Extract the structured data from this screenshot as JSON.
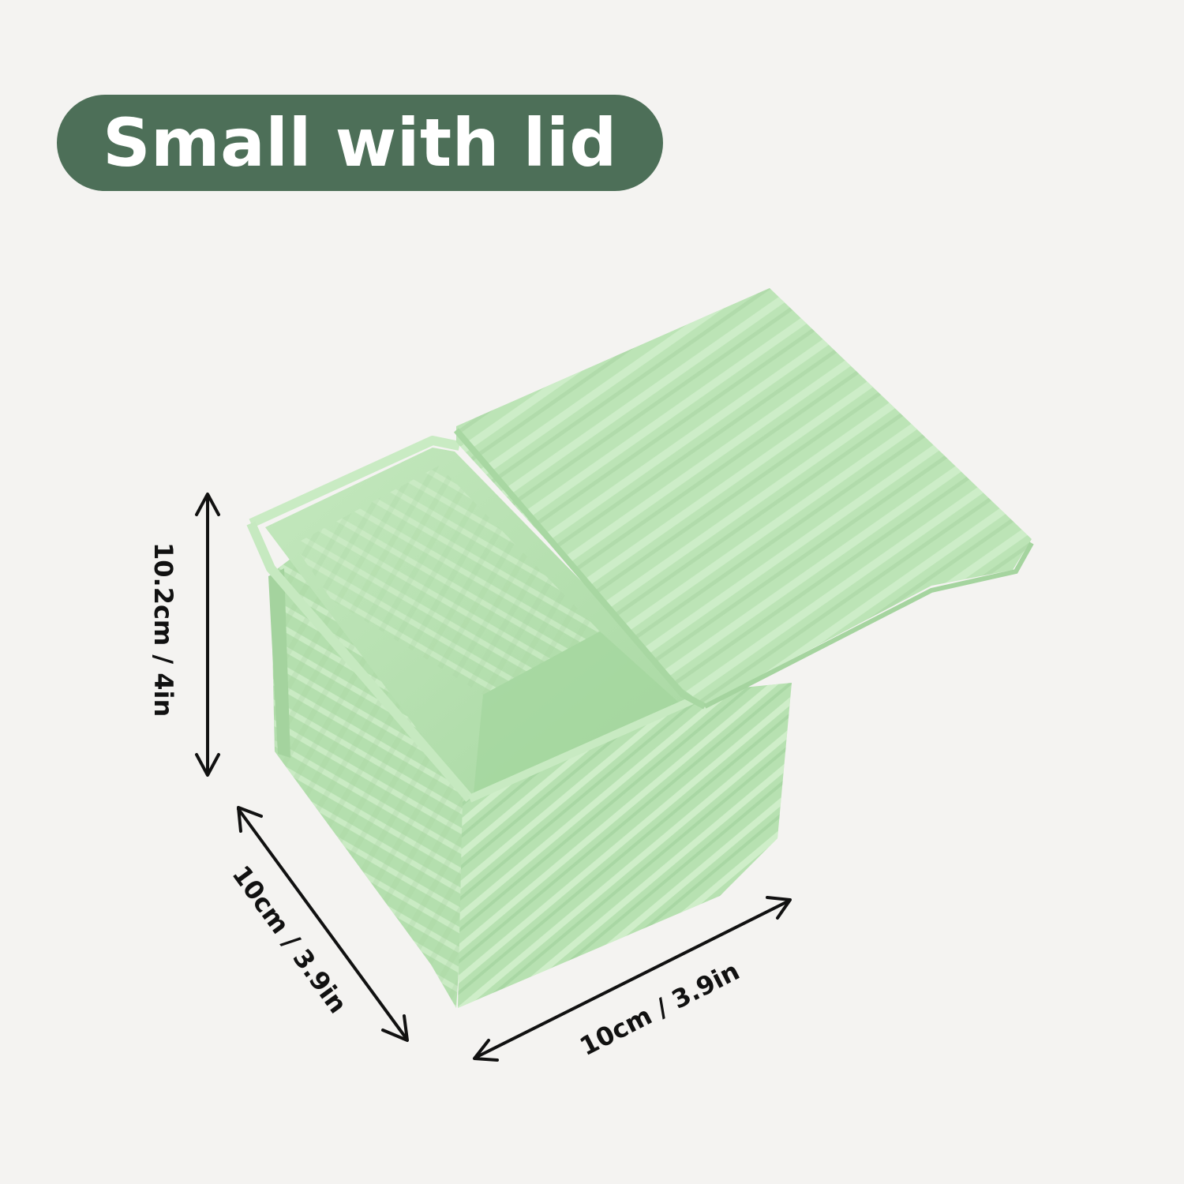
{
  "header": {
    "title": "Small with lid",
    "background_color": "#4d6f58",
    "text_color": "#ffffff"
  },
  "product": {
    "color": "#b9e3b5",
    "description_icon": "green-loaf-pan-with-lid"
  },
  "dimensions": {
    "height_label": "10.2cm / 4in",
    "depth_label": "10cm / 3.9in",
    "width_label": "10cm / 3.9in"
  }
}
